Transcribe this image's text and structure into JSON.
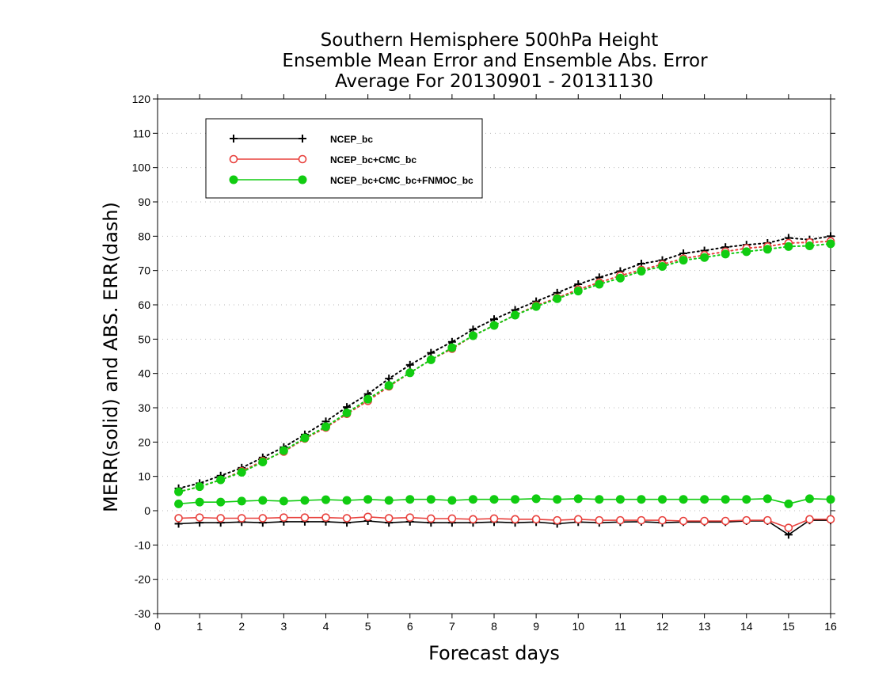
{
  "chart_data": {
    "type": "line",
    "title": [
      "Southern Hemisphere 500hPa Height",
      "Ensemble Mean Error and Ensemble Abs. Error",
      "Average For 20130901 - 20131130"
    ],
    "xlabel": "Forecast days",
    "ylabel": "MERR(solid) and ABS. ERR(dash)",
    "xlim": [
      0,
      16
    ],
    "ylim": [
      -30,
      120
    ],
    "x_ticks": [
      "0",
      "1",
      "2",
      "3",
      "4",
      "5",
      "6",
      "7",
      "8",
      "9",
      "10",
      "11",
      "12",
      "13",
      "14",
      "15",
      "16"
    ],
    "y_ticks": [
      "120",
      "110",
      "100",
      "90",
      "80",
      "70",
      "60",
      "50",
      "40",
      "30",
      "20",
      "10",
      "0",
      "-10",
      "-20",
      "-30"
    ],
    "grid": "horizontal dotted",
    "legend_position": "top-left",
    "x": [
      0.5,
      1,
      1.5,
      2,
      2.5,
      3,
      3.5,
      4,
      4.5,
      5,
      5.5,
      6,
      6.5,
      7,
      7.5,
      8,
      8.5,
      9,
      9.5,
      10,
      10.5,
      11,
      11.5,
      12,
      12.5,
      13,
      13.5,
      14,
      14.5,
      15,
      15.5,
      16
    ],
    "series": [
      {
        "name": "NCEP_bc",
        "color": "#000000",
        "marker": "plus",
        "merr": [
          -3.8,
          -3.5,
          -3.5,
          -3.3,
          -3.5,
          -3.2,
          -3.2,
          -3.2,
          -3.5,
          -3.0,
          -3.5,
          -3.2,
          -3.5,
          -3.5,
          -3.5,
          -3.3,
          -3.5,
          -3.3,
          -3.8,
          -3.3,
          -3.5,
          -3.3,
          -3.2,
          -3.5,
          -3.3,
          -3.3,
          -3.3,
          -3.0,
          -3.0,
          -7.0,
          -2.8,
          -2.8
        ],
        "abs_err": [
          6.5,
          8.0,
          10.2,
          12.5,
          15.5,
          18.5,
          22.2,
          26.0,
          30.2,
          34.0,
          38.5,
          42.5,
          46.0,
          49.2,
          52.8,
          55.8,
          58.5,
          61.0,
          63.5,
          66.0,
          68.0,
          69.8,
          72.0,
          73.0,
          75.0,
          75.8,
          76.8,
          77.5,
          78.0,
          79.5,
          79.0,
          80.0
        ]
      },
      {
        "name": "NCEP_bc+CMC_bc",
        "color": "#e8403c",
        "marker": "open-circle",
        "merr": [
          -2.2,
          -2.0,
          -2.2,
          -2.2,
          -2.2,
          -2.0,
          -2.0,
          -2.0,
          -2.2,
          -1.8,
          -2.2,
          -2.0,
          -2.3,
          -2.3,
          -2.5,
          -2.3,
          -2.5,
          -2.5,
          -2.8,
          -2.5,
          -2.8,
          -2.8,
          -2.8,
          -2.8,
          -3.0,
          -3.0,
          -3.0,
          -2.8,
          -2.8,
          -5.0,
          -2.5,
          -2.5
        ],
        "abs_err": [
          5.5,
          7.0,
          9.0,
          11.5,
          14.5,
          17.2,
          21.0,
          24.2,
          28.2,
          32.0,
          36.2,
          40.2,
          44.0,
          47.2,
          51.0,
          54.0,
          57.0,
          59.8,
          62.0,
          64.5,
          66.5,
          68.5,
          70.2,
          71.8,
          73.5,
          74.5,
          75.5,
          76.5,
          77.0,
          78.0,
          78.2,
          78.5
        ]
      },
      {
        "name": "NCEP_bc+CMC_bc+FNMOC_bc",
        "color": "#11cc11",
        "marker": "filled-circle",
        "merr": [
          2.0,
          2.5,
          2.5,
          2.8,
          3.0,
          2.8,
          3.0,
          3.2,
          3.0,
          3.3,
          3.0,
          3.3,
          3.3,
          3.0,
          3.3,
          3.3,
          3.3,
          3.5,
          3.3,
          3.5,
          3.3,
          3.3,
          3.3,
          3.3,
          3.3,
          3.3,
          3.3,
          3.3,
          3.5,
          2.0,
          3.5,
          3.3
        ],
        "abs_err": [
          5.5,
          7.0,
          9.0,
          11.2,
          14.2,
          17.5,
          21.2,
          24.5,
          28.5,
          32.5,
          36.5,
          40.2,
          44.0,
          47.5,
          51.0,
          54.0,
          57.0,
          59.5,
          61.8,
          64.0,
          66.0,
          67.8,
          69.8,
          71.2,
          73.0,
          73.8,
          74.8,
          75.5,
          76.2,
          77.0,
          77.2,
          77.8
        ]
      }
    ]
  }
}
